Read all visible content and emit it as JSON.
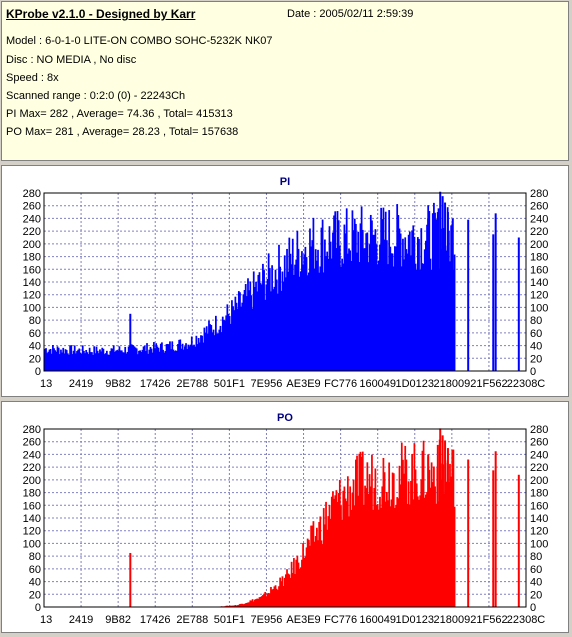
{
  "info": {
    "title": "KProbe v2.1.0 - Designed by Karr",
    "date": "Date : 2005/02/11 2:59:39",
    "lines": [
      "Model : 6-0-1-0 LITE-ON COMBO SOHC-5232K NK07",
      "Disc : NO MEDIA , No disc",
      "Speed : 8x",
      "Scanned range : 0:2:0 (0) - 22243Ch",
      "PI Max= 282 , Average= 74.36 , Total= 415313",
      "PO Max= 281 , Average= 28.23 , Total= 157638"
    ]
  },
  "chart_data": [
    {
      "type": "bar",
      "title": "PI",
      "color": "#0000ff",
      "ylim": [
        0,
        280
      ],
      "yticks": [
        0,
        20,
        40,
        60,
        80,
        100,
        120,
        140,
        160,
        180,
        200,
        220,
        240,
        260,
        280
      ],
      "xtick_labels": [
        "13",
        "2419",
        "9B82",
        "17426",
        "2E788",
        "501F1",
        "7E956",
        "AE3E9",
        "FC776",
        "160049",
        "1D0123",
        "218009",
        "21F562",
        "22308C"
      ],
      "grid": true,
      "profile_x": [
        0,
        0.05,
        0.1,
        0.15,
        0.2,
        0.25,
        0.3,
        0.35,
        0.4,
        0.45,
        0.5,
        0.55,
        0.6,
        0.65,
        0.7,
        0.75,
        0.8,
        0.82,
        0.84,
        0.85
      ],
      "profile_y": [
        35,
        33,
        32,
        33,
        35,
        38,
        45,
        70,
        100,
        140,
        170,
        200,
        205,
        210,
        212,
        212,
        212,
        212,
        210,
        210
      ],
      "spikes": [
        {
          "x": 0.177,
          "value": 90
        },
        {
          "x": 0.795,
          "value": 240
        },
        {
          "x": 0.815,
          "value": 250
        },
        {
          "x": 0.82,
          "value": 282
        },
        {
          "x": 0.825,
          "value": 275
        },
        {
          "x": 0.83,
          "value": 265
        },
        {
          "x": 0.836,
          "value": 250
        },
        {
          "x": 0.846,
          "value": 240
        },
        {
          "x": 0.878,
          "value": 238
        },
        {
          "x": 0.935,
          "value": 248
        },
        {
          "x": 0.93,
          "value": 215
        },
        {
          "x": 0.983,
          "value": 210
        }
      ]
    },
    {
      "type": "bar",
      "title": "PO",
      "color": "#ff0000",
      "ylim": [
        0,
        280
      ],
      "yticks": [
        0,
        20,
        40,
        60,
        80,
        100,
        120,
        140,
        160,
        180,
        200,
        220,
        240,
        260,
        280
      ],
      "xtick_labels": [
        "13",
        "2419",
        "9B82",
        "17426",
        "2E788",
        "501F1",
        "7E956",
        "AE3E9",
        "FC776",
        "160049",
        "1D0123",
        "218009",
        "21F562",
        "22308C"
      ],
      "grid": true,
      "profile_x": [
        0,
        0.35,
        0.4,
        0.45,
        0.5,
        0.55,
        0.6,
        0.65,
        0.7,
        0.75,
        0.8,
        0.82,
        0.84,
        0.85
      ],
      "profile_y": [
        0,
        0,
        3,
        15,
        45,
        100,
        160,
        195,
        205,
        210,
        210,
        212,
        210,
        210
      ],
      "spikes": [
        {
          "x": 0.177,
          "value": 85
        },
        {
          "x": 0.795,
          "value": 240
        },
        {
          "x": 0.815,
          "value": 255
        },
        {
          "x": 0.82,
          "value": 281
        },
        {
          "x": 0.825,
          "value": 270
        },
        {
          "x": 0.83,
          "value": 262
        },
        {
          "x": 0.836,
          "value": 250
        },
        {
          "x": 0.846,
          "value": 230
        },
        {
          "x": 0.878,
          "value": 232
        },
        {
          "x": 0.935,
          "value": 245
        },
        {
          "x": 0.93,
          "value": 215
        },
        {
          "x": 0.983,
          "value": 208
        }
      ]
    }
  ]
}
